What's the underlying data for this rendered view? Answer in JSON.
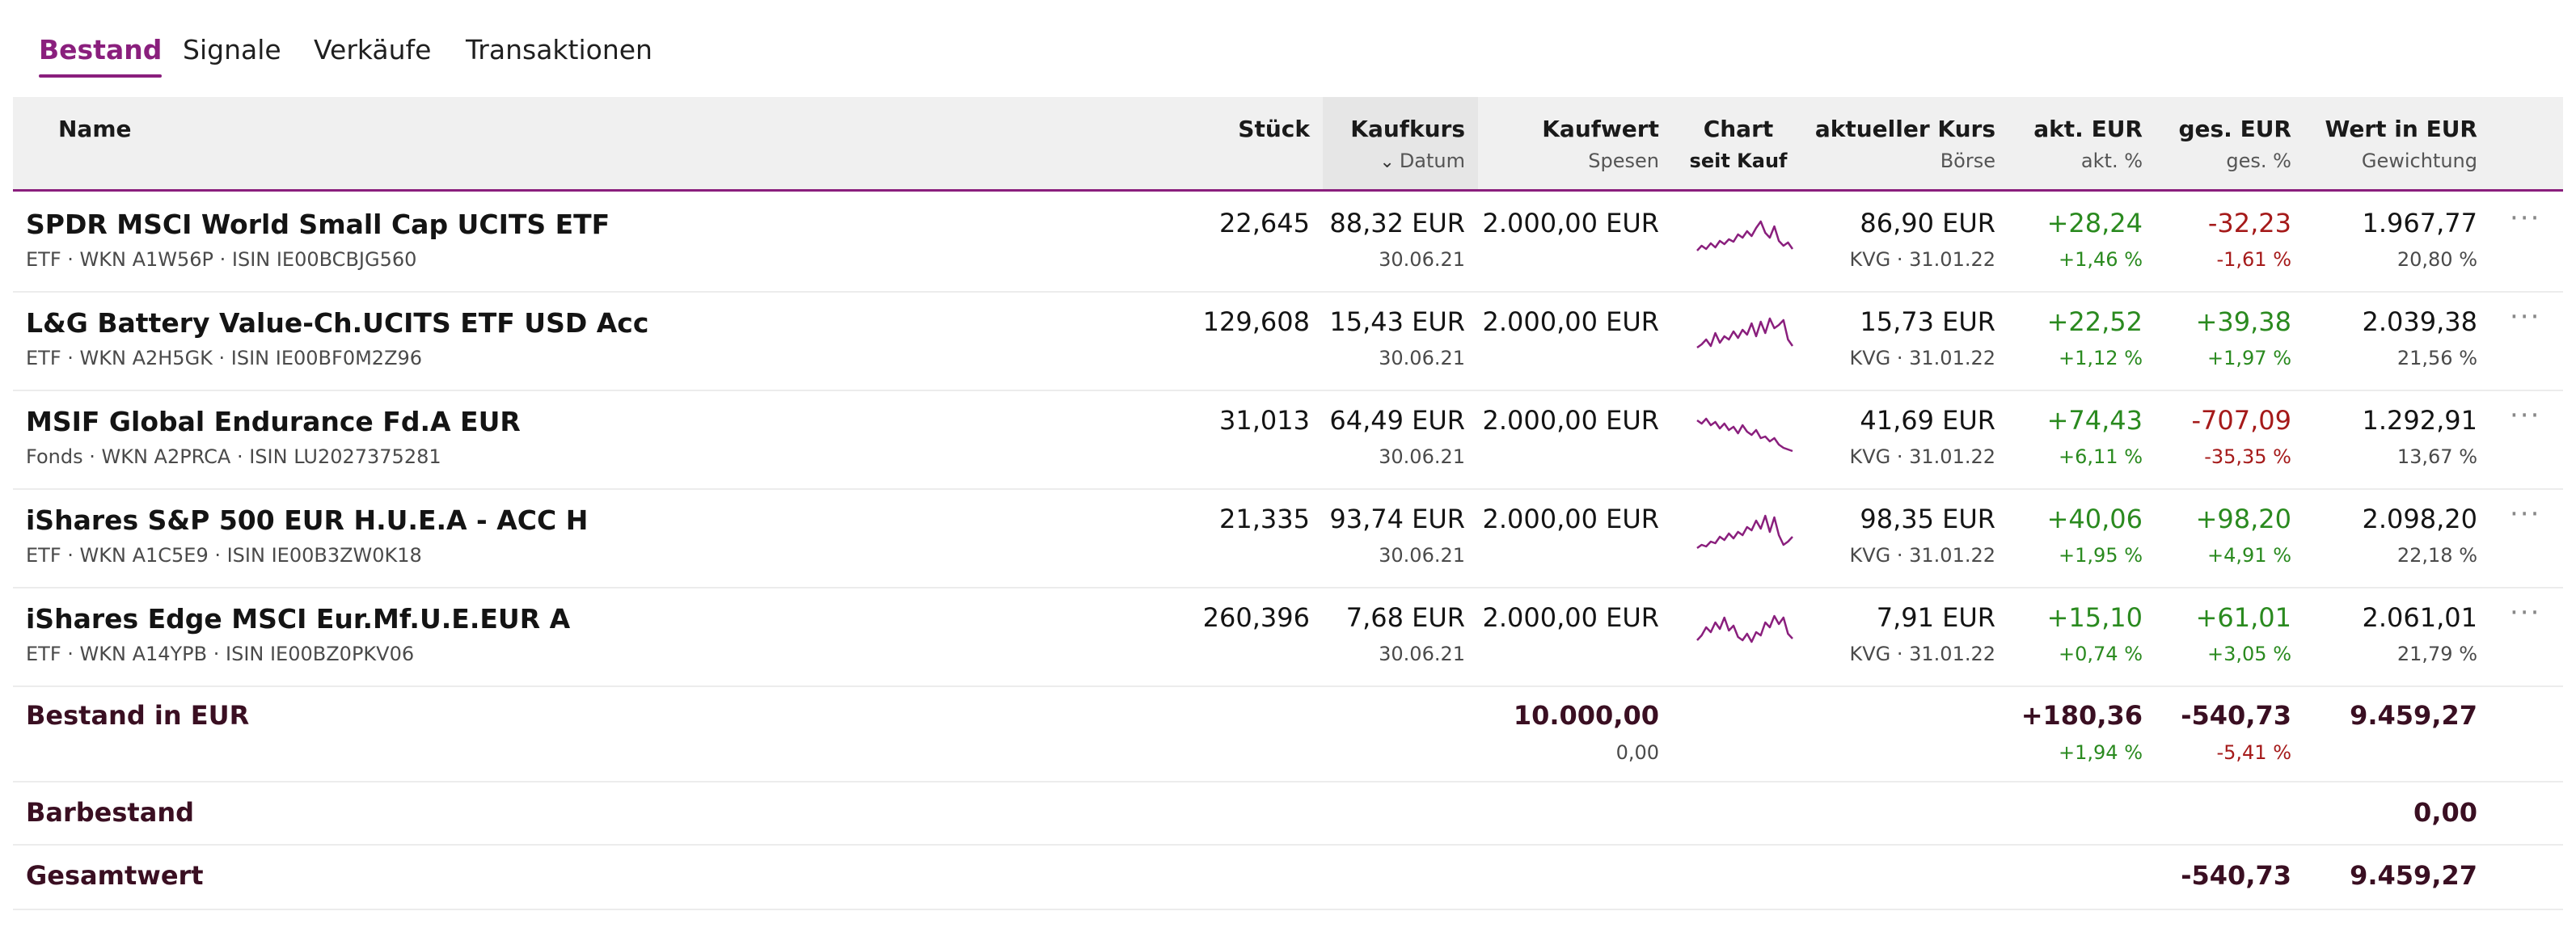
{
  "tabs": [
    {
      "label": "Bestand",
      "active": true
    },
    {
      "label": "Signale"
    },
    {
      "label": "Verkäufe"
    },
    {
      "label": "Transaktionen"
    }
  ],
  "columns": {
    "name": "Name",
    "stueck": "Stück",
    "kaufkurs": "Kaufkurs",
    "kaufkurs_sub": "Datum",
    "kaufwert": "Kaufwert",
    "kaufwert_sub": "Spesen",
    "chart": "Chart",
    "chart_sub": "seit Kauf",
    "kurs": "aktueller Kurs",
    "kurs_sub": "Börse",
    "akt": "akt. EUR",
    "akt_sub": "akt. %",
    "ges": "ges. EUR",
    "ges_sub": "ges. %",
    "wert": "Wert in EUR",
    "wert_sub": "Gewichtung"
  },
  "rows": [
    {
      "name": "SPDR MSCI World Small Cap UCITS ETF",
      "meta": "ETF · WKN A1W56P · ISIN IE00BCBJG560",
      "stueck": "22,645",
      "kaufkurs": "88,32 EUR",
      "datum": "30.06.21",
      "kaufwert": "2.000,00 EUR",
      "kurs": "86,90 EUR",
      "boerse": "KVG · 31.01.22",
      "akt_eur": "+28,24",
      "akt_pct": "+1,46 %",
      "ges_eur": "-32,23",
      "ges_pct": "-1,61 %",
      "wert": "1.967,77",
      "gewichtung": "20,80 %",
      "more": "···"
    },
    {
      "name": "L&G Battery Value-Ch.UCITS ETF USD Acc",
      "meta": "ETF · WKN A2H5GK · ISIN IE00BF0M2Z96",
      "stueck": "129,608",
      "kaufkurs": "15,43 EUR",
      "datum": "30.06.21",
      "kaufwert": "2.000,00 EUR",
      "kurs": "15,73 EUR",
      "boerse": "KVG · 31.01.22",
      "akt_eur": "+22,52",
      "akt_pct": "+1,12 %",
      "ges_eur": "+39,38",
      "ges_pct": "+1,97 %",
      "wert": "2.039,38",
      "gewichtung": "21,56 %",
      "more": "···"
    },
    {
      "name": "MSIF Global Endurance Fd.A EUR",
      "meta": "Fonds · WKN A2PRCA · ISIN LU2027375281",
      "stueck": "31,013",
      "kaufkurs": "64,49 EUR",
      "datum": "30.06.21",
      "kaufwert": "2.000,00 EUR",
      "kurs": "41,69 EUR",
      "boerse": "KVG · 31.01.22",
      "akt_eur": "+74,43",
      "akt_pct": "+6,11 %",
      "ges_eur": "-707,09",
      "ges_pct": "-35,35 %",
      "wert": "1.292,91",
      "gewichtung": "13,67 %",
      "more": "···"
    },
    {
      "name": "iShares S&P 500 EUR H.U.E.A - ACC H",
      "meta": "ETF · WKN A1C5E9 · ISIN IE00B3ZW0K18",
      "stueck": "21,335",
      "kaufkurs": "93,74 EUR",
      "datum": "30.06.21",
      "kaufwert": "2.000,00 EUR",
      "kurs": "98,35 EUR",
      "boerse": "KVG · 31.01.22",
      "akt_eur": "+40,06",
      "akt_pct": "+1,95 %",
      "ges_eur": "+98,20",
      "ges_pct": "+4,91 %",
      "wert": "2.098,20",
      "gewichtung": "22,18 %",
      "more": "···"
    },
    {
      "name": "iShares Edge MSCI Eur.Mf.U.E.EUR A",
      "meta": "ETF · WKN A14YPB · ISIN IE00BZ0PKV06",
      "stueck": "260,396",
      "kaufkurs": "7,68 EUR",
      "datum": "30.06.21",
      "kaufwert": "2.000,00 EUR",
      "kurs": "7,91 EUR",
      "boerse": "KVG · 31.01.22",
      "akt_eur": "+15,10",
      "akt_pct": "+0,74 %",
      "ges_eur": "+61,01",
      "ges_pct": "+3,05 %",
      "wert": "2.061,01",
      "gewichtung": "21,79 %",
      "more": "···"
    }
  ],
  "summary": {
    "bestand_label": "Bestand in EUR",
    "bestand_kaufwert": "10.000,00",
    "bestand_spesen": "0,00",
    "bestand_akt_eur": "+180,36",
    "bestand_akt_pct": "+1,94 %",
    "bestand_ges_eur": "-540,73",
    "bestand_ges_pct": "-5,41 %",
    "bestand_wert": "9.459,27",
    "barbestand_label": "Barbestand",
    "barbestand_wert": "0,00",
    "gesamt_label": "Gesamtwert",
    "gesamt_ges_eur": "-540,73",
    "gesamt_wert": "9.459,27"
  },
  "colors": {
    "accent": "#8a1f7d",
    "positive": "#2a8a1f",
    "negative": "#a51a1a"
  },
  "icons": {
    "sort": "chevron-down-icon",
    "more": "more-dots-icon"
  }
}
